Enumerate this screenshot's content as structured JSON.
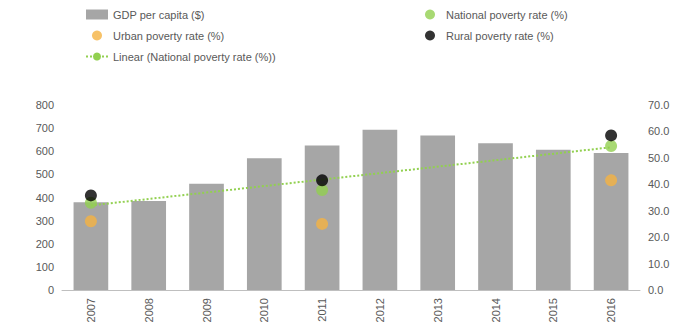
{
  "chart_data": {
    "type": "bar",
    "categories": [
      "2007",
      "2008",
      "2009",
      "2010",
      "2011",
      "2012",
      "2013",
      "2014",
      "2015",
      "2016"
    ],
    "series": [
      {
        "name": "GDP per capita ($)",
        "type": "bar",
        "color": "#a6a6a6",
        "values": [
          380,
          385,
          460,
          570,
          625,
          693,
          668,
          635,
          607,
          592
        ]
      },
      {
        "name": "National poverty rate (%)",
        "type": "scatter",
        "axis": "y2",
        "color": "#92d050",
        "marker": "circle",
        "values": [
          33.0,
          null,
          null,
          null,
          37.8,
          null,
          null,
          null,
          null,
          54.5
        ]
      },
      {
        "name": "Urban poverty rate (%)",
        "type": "scatter",
        "axis": "y2",
        "color": "#f5b342",
        "marker": "circle",
        "values": [
          26.0,
          null,
          null,
          null,
          25.0,
          null,
          null,
          null,
          null,
          41.5
        ]
      },
      {
        "name": "Rural poverty rate (%)",
        "type": "scatter",
        "axis": "y2",
        "color": "#000000",
        "marker": "circle",
        "values": [
          35.8,
          null,
          null,
          null,
          41.5,
          null,
          null,
          null,
          null,
          58.5
        ]
      },
      {
        "name": "Linear (National poverty rate (%))",
        "type": "line",
        "axis": "y2",
        "color": "#92d050",
        "line_style": "dotted",
        "values": [
          32.0,
          null,
          null,
          null,
          null,
          null,
          null,
          null,
          null,
          54.0
        ]
      }
    ],
    "ylim": [
      0,
      800
    ],
    "yticks": [
      0,
      100,
      200,
      300,
      400,
      500,
      600,
      700,
      800
    ],
    "y2lim": [
      0,
      70
    ],
    "y2ticks": [
      {
        "value": 0,
        "label": "0.0"
      },
      {
        "value": 10,
        "label": "10.0"
      },
      {
        "value": 20,
        "label": "20.0"
      },
      {
        "value": 30,
        "label": "30.0"
      },
      {
        "value": 40,
        "label": "40.0"
      },
      {
        "value": 50,
        "label": "50.0"
      },
      {
        "value": 60,
        "label": "60.0"
      },
      {
        "value": 70,
        "label": "70.0"
      }
    ],
    "grid": false,
    "legend": "top"
  }
}
